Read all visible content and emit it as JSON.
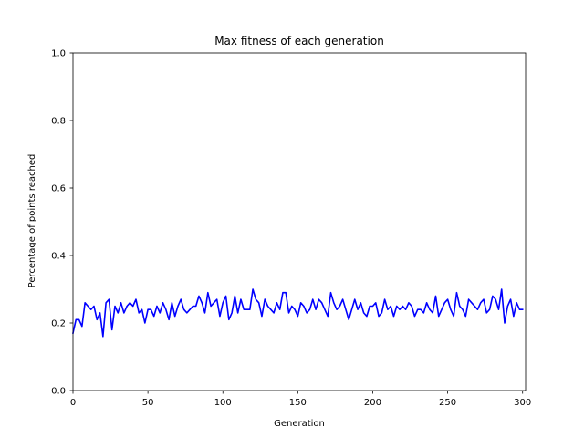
{
  "chart_data": {
    "type": "line",
    "title": "Max fitness of each generation",
    "xlabel": "Generation",
    "ylabel": "Percentage of points reached",
    "xlim": [
      0,
      302
    ],
    "ylim": [
      0.0,
      1.0
    ],
    "x_ticks": [
      0,
      50,
      100,
      150,
      200,
      250,
      300
    ],
    "x_tick_labels": [
      "0",
      "50",
      "100",
      "150",
      "200",
      "250",
      "300"
    ],
    "y_ticks": [
      0.0,
      0.2,
      0.4,
      0.6,
      0.8,
      1.0
    ],
    "y_tick_labels": [
      "0.0",
      "0.2",
      "0.4",
      "0.6",
      "0.8",
      "1.0"
    ],
    "grid": false,
    "series": [
      {
        "color": "#0000ff",
        "x_start": 0,
        "x_step": 2,
        "values": [
          0.17,
          0.21,
          0.21,
          0.19,
          0.26,
          0.25,
          0.24,
          0.25,
          0.21,
          0.23,
          0.16,
          0.26,
          0.27,
          0.18,
          0.25,
          0.23,
          0.26,
          0.23,
          0.25,
          0.26,
          0.25,
          0.27,
          0.23,
          0.24,
          0.2,
          0.24,
          0.24,
          0.22,
          0.25,
          0.23,
          0.26,
          0.24,
          0.21,
          0.26,
          0.22,
          0.25,
          0.27,
          0.24,
          0.23,
          0.24,
          0.25,
          0.25,
          0.28,
          0.26,
          0.23,
          0.29,
          0.25,
          0.26,
          0.27,
          0.22,
          0.26,
          0.28,
          0.21,
          0.23,
          0.28,
          0.23,
          0.27,
          0.24,
          0.24,
          0.24,
          0.3,
          0.27,
          0.26,
          0.22,
          0.27,
          0.25,
          0.24,
          0.23,
          0.26,
          0.24,
          0.29,
          0.29,
          0.23,
          0.25,
          0.24,
          0.22,
          0.26,
          0.25,
          0.23,
          0.24,
          0.27,
          0.24,
          0.27,
          0.26,
          0.24,
          0.22,
          0.29,
          0.26,
          0.24,
          0.25,
          0.27,
          0.24,
          0.21,
          0.24,
          0.27,
          0.24,
          0.26,
          0.23,
          0.22,
          0.25,
          0.25,
          0.26,
          0.22,
          0.23,
          0.27,
          0.24,
          0.25,
          0.22,
          0.25,
          0.24,
          0.25,
          0.24,
          0.26,
          0.25,
          0.22,
          0.24,
          0.24,
          0.23,
          0.26,
          0.24,
          0.23,
          0.28,
          0.22,
          0.24,
          0.26,
          0.27,
          0.24,
          0.22,
          0.29,
          0.25,
          0.24,
          0.22,
          0.27,
          0.26,
          0.25,
          0.24,
          0.26,
          0.27,
          0.23,
          0.24,
          0.28,
          0.27,
          0.24,
          0.3,
          0.2,
          0.25,
          0.27,
          0.22,
          0.26,
          0.24,
          0.24
        ]
      }
    ]
  }
}
